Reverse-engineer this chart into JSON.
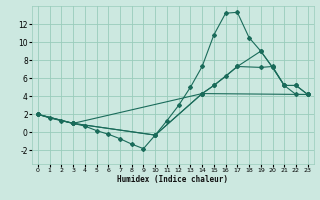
{
  "xlabel": "Humidex (Indice chaleur)",
  "bg_color": "#cce8e0",
  "grid_color": "#99ccbb",
  "line_color": "#1a6b5a",
  "xlim": [
    -0.5,
    23.5
  ],
  "ylim": [
    -3.5,
    14.0
  ],
  "xticks": [
    0,
    1,
    2,
    3,
    4,
    5,
    6,
    7,
    8,
    9,
    10,
    11,
    12,
    13,
    14,
    15,
    16,
    17,
    18,
    19,
    20,
    21,
    22,
    23
  ],
  "yticks": [
    -2,
    0,
    2,
    4,
    6,
    8,
    10,
    12
  ],
  "lines": [
    {
      "x": [
        0,
        1,
        2,
        3,
        4,
        5,
        6,
        7,
        8,
        9,
        10,
        11,
        12,
        13,
        14,
        15,
        16,
        17,
        18,
        19,
        20,
        21,
        22,
        23
      ],
      "y": [
        2.0,
        1.6,
        1.3,
        1.0,
        0.7,
        0.2,
        -0.2,
        -0.7,
        -1.3,
        -1.8,
        -0.3,
        1.3,
        3.0,
        5.0,
        7.3,
        10.8,
        13.2,
        13.3,
        10.5,
        9.0,
        7.2,
        5.2,
        4.2,
        4.2
      ]
    },
    {
      "x": [
        0,
        3,
        10,
        14,
        15,
        16,
        17,
        19,
        20,
        21,
        22,
        23
      ],
      "y": [
        2.0,
        1.0,
        -0.3,
        4.3,
        5.2,
        6.2,
        7.3,
        7.2,
        7.3,
        5.2,
        5.2,
        4.2
      ]
    },
    {
      "x": [
        0,
        3,
        14,
        23
      ],
      "y": [
        2.0,
        1.0,
        4.3,
        4.2
      ]
    },
    {
      "x": [
        0,
        3,
        10,
        14,
        15,
        17,
        19,
        20,
        21,
        22,
        23
      ],
      "y": [
        2.0,
        1.0,
        -0.3,
        4.3,
        5.2,
        7.3,
        9.0,
        7.2,
        5.2,
        5.2,
        4.2
      ]
    }
  ]
}
